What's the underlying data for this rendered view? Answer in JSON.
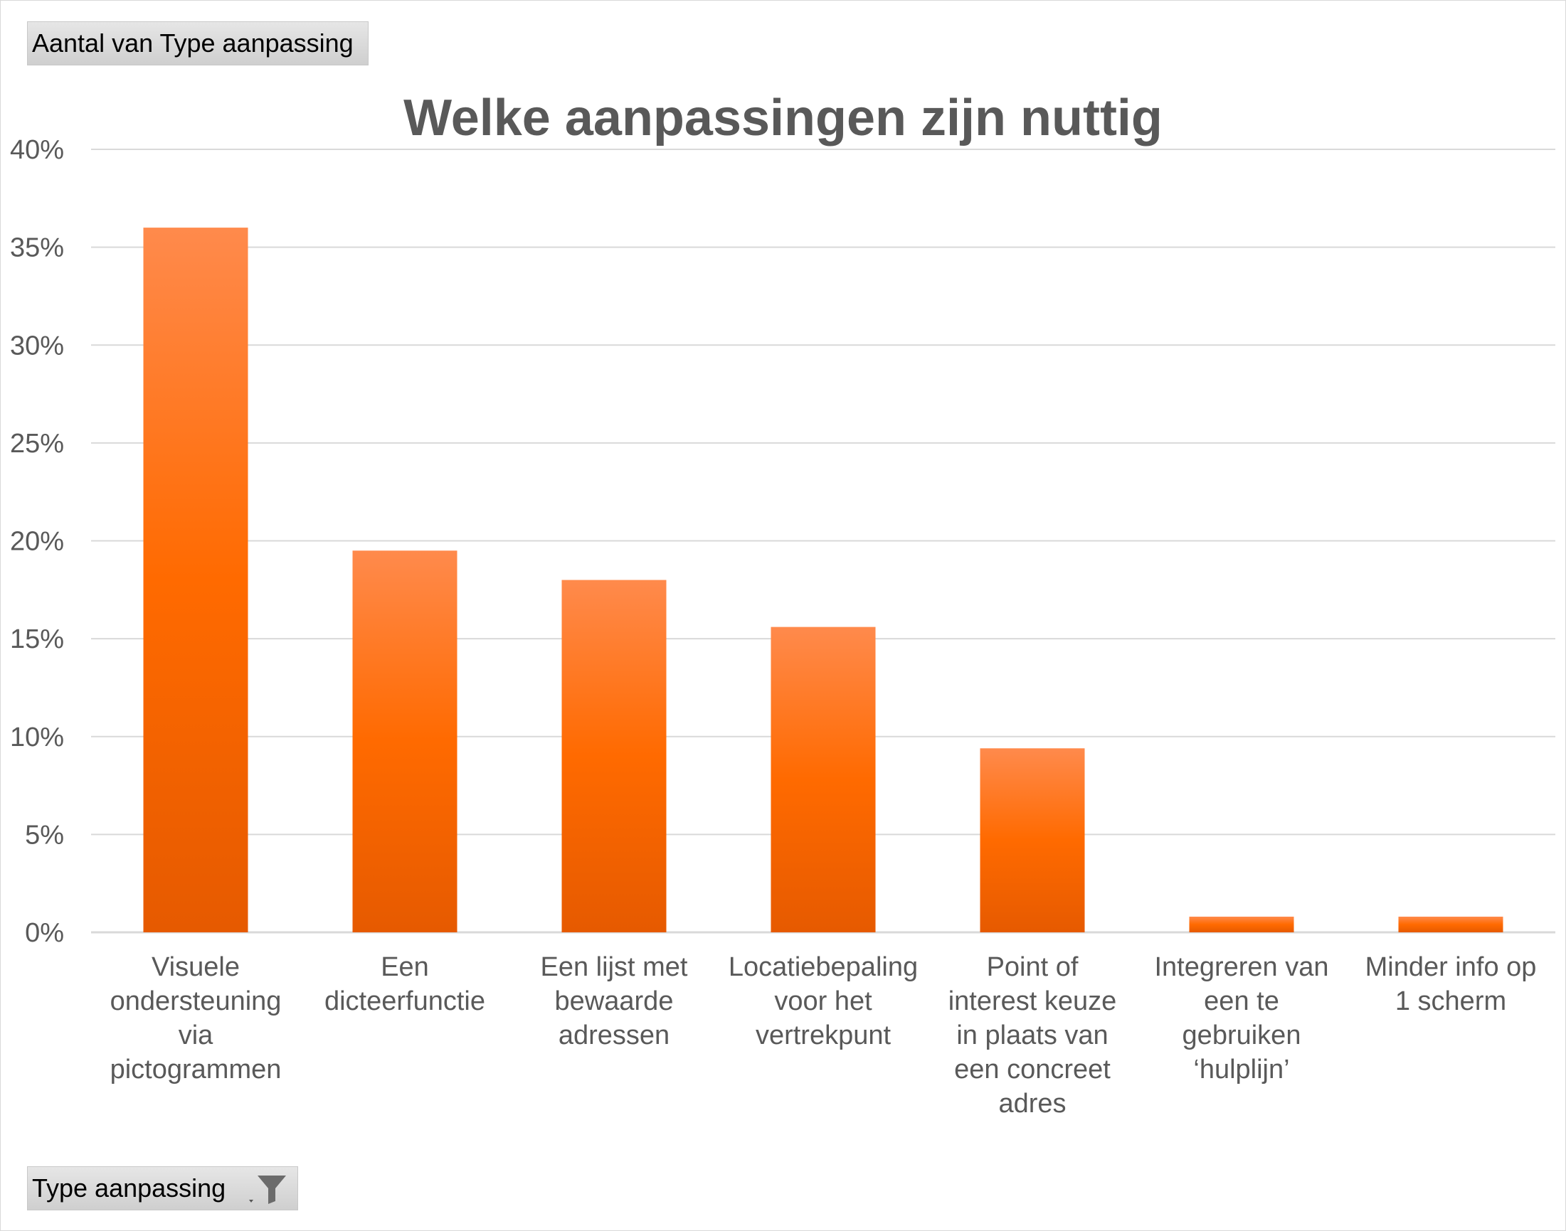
{
  "pivot": {
    "value_field_label": "Aantal van Type aanpassing",
    "axis_field_label": "Type aanpassing",
    "filter_icon": "funnel-filter-icon"
  },
  "colors": {
    "bar_top": "#ff8a4c",
    "bar_mid": "#ff6a00",
    "bar_bottom": "#e65a00",
    "gridline": "#d9d9d9",
    "text": "#595959"
  },
  "chart_data": {
    "type": "bar",
    "title": "Welke aanpassingen zijn nuttig",
    "xlabel": "",
    "ylabel": "",
    "ylim": [
      0,
      40
    ],
    "yticks": [
      "0%",
      "5%",
      "10%",
      "15%",
      "20%",
      "25%",
      "30%",
      "35%",
      "40%"
    ],
    "grid": true,
    "categories": [
      [
        "Visuele",
        "ondersteuning",
        "via",
        "pictogrammen"
      ],
      [
        "Een",
        "dicteerfunctie"
      ],
      [
        "Een lijst met",
        "bewaarde",
        "adressen"
      ],
      [
        "Locatiebepaling",
        "voor het",
        "vertrekpunt"
      ],
      [
        "Point of",
        "interest keuze",
        "in plaats van",
        "een concreet",
        "adres"
      ],
      [
        "Integreren van",
        "een te",
        "gebruiken",
        "‘hulplijn’"
      ],
      [
        "Minder info op",
        "1 scherm"
      ]
    ],
    "values": [
      36.0,
      19.5,
      18.0,
      15.6,
      9.4,
      0.8,
      0.8
    ]
  }
}
